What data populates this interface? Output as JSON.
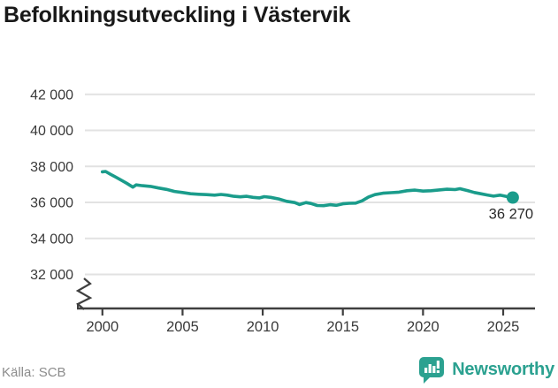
{
  "title": "Befolkningsutveckling i Västervik",
  "footer": {
    "source": "Källa: SCB",
    "brand": "Newsworthy"
  },
  "colors": {
    "background": "#ffffff",
    "line": "#1a9c8b",
    "dot": "#1a9c8b",
    "grid": "#e2e2e2",
    "axis": "#3f3f3f",
    "tick_text": "#3a3a3a",
    "title_text": "#191919",
    "end_label_text": "#2b2b2b",
    "source_text": "#8c8c8c",
    "brand_teal": "#2ba190"
  },
  "chart_data": {
    "type": "line",
    "title": "Befolkningsutveckling i Västervik",
    "xlabel": "",
    "ylabel": "",
    "grid": "horizontal",
    "legend": "none",
    "axis_break": true,
    "xlim": [
      1998.5,
      2027.5
    ],
    "ylim": [
      32000,
      42000
    ],
    "yticks": [
      {
        "value": 32000,
        "label": "32 000"
      },
      {
        "value": 34000,
        "label": "34 000"
      },
      {
        "value": 36000,
        "label": "36 000"
      },
      {
        "value": 38000,
        "label": "38 000"
      },
      {
        "value": 40000,
        "label": "40 000"
      },
      {
        "value": 42000,
        "label": "42 000"
      }
    ],
    "xticks": [
      {
        "value": 2000,
        "label": "2000"
      },
      {
        "value": 2005,
        "label": "2005"
      },
      {
        "value": 2010,
        "label": "2010"
      },
      {
        "value": 2015,
        "label": "2015"
      },
      {
        "value": 2020,
        "label": "2020"
      },
      {
        "value": 2025,
        "label": "2025"
      }
    ],
    "end_label": "36 270",
    "end_value": 36270,
    "series": [
      {
        "name": "Befolkning",
        "points": [
          [
            2000.0,
            37700
          ],
          [
            2000.2,
            37720
          ],
          [
            2000.5,
            37560
          ],
          [
            2000.8,
            37420
          ],
          [
            2001.1,
            37270
          ],
          [
            2001.5,
            37070
          ],
          [
            2001.9,
            36850
          ],
          [
            2002.1,
            36970
          ],
          [
            2002.5,
            36930
          ],
          [
            2003.0,
            36890
          ],
          [
            2003.5,
            36800
          ],
          [
            2004.0,
            36720
          ],
          [
            2004.5,
            36610
          ],
          [
            2005.0,
            36550
          ],
          [
            2005.5,
            36480
          ],
          [
            2006.0,
            36450
          ],
          [
            2006.5,
            36430
          ],
          [
            2007.0,
            36400
          ],
          [
            2007.4,
            36440
          ],
          [
            2007.8,
            36400
          ],
          [
            2008.2,
            36340
          ],
          [
            2008.6,
            36310
          ],
          [
            2009.0,
            36340
          ],
          [
            2009.4,
            36280
          ],
          [
            2009.8,
            36250
          ],
          [
            2010.1,
            36320
          ],
          [
            2010.5,
            36280
          ],
          [
            2011.0,
            36190
          ],
          [
            2011.5,
            36060
          ],
          [
            2012.0,
            35990
          ],
          [
            2012.3,
            35880
          ],
          [
            2012.7,
            35990
          ],
          [
            2013.0,
            35940
          ],
          [
            2013.4,
            35830
          ],
          [
            2013.8,
            35820
          ],
          [
            2014.2,
            35870
          ],
          [
            2014.6,
            35840
          ],
          [
            2015.0,
            35920
          ],
          [
            2015.4,
            35950
          ],
          [
            2015.8,
            35960
          ],
          [
            2016.2,
            36090
          ],
          [
            2016.6,
            36300
          ],
          [
            2017.0,
            36430
          ],
          [
            2017.5,
            36510
          ],
          [
            2018.0,
            36540
          ],
          [
            2018.5,
            36570
          ],
          [
            2019.0,
            36650
          ],
          [
            2019.5,
            36680
          ],
          [
            2020.0,
            36630
          ],
          [
            2020.5,
            36650
          ],
          [
            2021.0,
            36690
          ],
          [
            2021.5,
            36730
          ],
          [
            2022.0,
            36710
          ],
          [
            2022.3,
            36760
          ],
          [
            2022.8,
            36650
          ],
          [
            2023.2,
            36550
          ],
          [
            2023.6,
            36480
          ],
          [
            2024.0,
            36410
          ],
          [
            2024.4,
            36350
          ],
          [
            2024.8,
            36400
          ],
          [
            2025.2,
            36330
          ],
          [
            2025.6,
            36270
          ]
        ]
      }
    ]
  }
}
